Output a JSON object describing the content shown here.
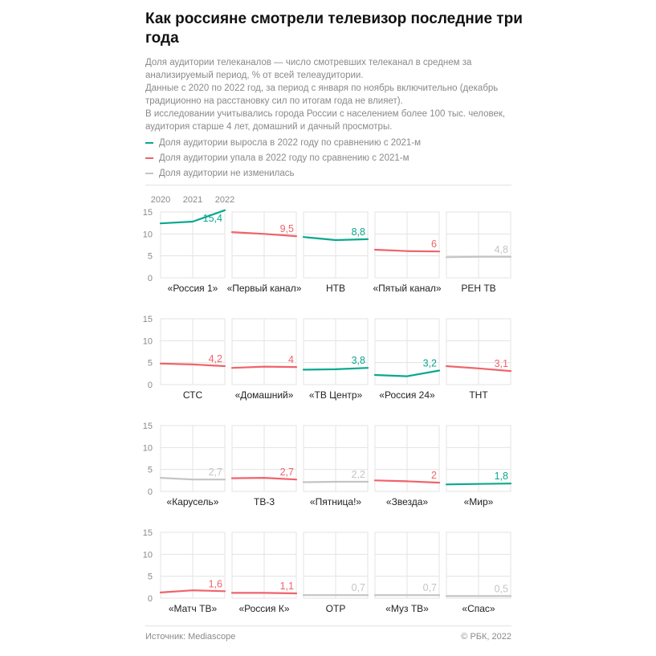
{
  "title": "Как россияне смотрели телевизор последние три года",
  "description": [
    "Доля аудитории телеканалов — число смотревших телеканал в среднем за анализируемый период, % от всей телеаудитории.",
    "Данные с 2020 по 2022 год, за период с января по ноябрь включительно (декабрь традиционно на расстановку сил по итогам года не влияет).",
    "В исследовании учитывались города России с населением более 100 тыс. человек, аудитория старше 4 лет, домашний и дачный просмотры."
  ],
  "legend": [
    {
      "label": "Доля аудитории выросла в 2022 году по сравнению с 2021-м",
      "color": "#0aa88f"
    },
    {
      "label": "Доля аудитории упала в 2022 году по сравнению с 2021-м",
      "color": "#f0636b"
    },
    {
      "label": "Доля аудитории не изменилась",
      "color": "#c4c4c4"
    }
  ],
  "colors": {
    "up": "#0aa88f",
    "down": "#f0636b",
    "same": "#c4c4c4"
  },
  "footer": {
    "source": "Источник: Mediascope",
    "copyright": "© РБК, 2022"
  },
  "chart_data": {
    "type": "line",
    "x": [
      "2020",
      "2021",
      "2022"
    ],
    "ylim": [
      0,
      15
    ],
    "yticks": [
      0,
      5,
      10,
      15
    ],
    "grid": true,
    "legend_position": "top",
    "value_label_decimal_separator": ",",
    "panels": [
      {
        "name": "«Россия 1»",
        "values": [
          12.4,
          12.8,
          15.4
        ],
        "trend": "up"
      },
      {
        "name": "«Первый канал»",
        "values": [
          10.4,
          10.0,
          9.5
        ],
        "trend": "down"
      },
      {
        "name": "НТВ",
        "values": [
          9.3,
          8.6,
          8.8
        ],
        "trend": "up"
      },
      {
        "name": "«Пятый канал»",
        "values": [
          6.4,
          6.1,
          6.0
        ],
        "trend": "down"
      },
      {
        "name": "РЕН ТВ",
        "values": [
          4.7,
          4.8,
          4.8
        ],
        "trend": "same"
      },
      {
        "name": "СТС",
        "values": [
          4.8,
          4.6,
          4.2
        ],
        "trend": "down"
      },
      {
        "name": "«Домашний»",
        "values": [
          3.8,
          4.1,
          4.0
        ],
        "trend": "down"
      },
      {
        "name": "«ТВ Центр»",
        "values": [
          3.4,
          3.5,
          3.8
        ],
        "trend": "up"
      },
      {
        "name": "«Россия 24»",
        "values": [
          2.2,
          1.9,
          3.2
        ],
        "trend": "up"
      },
      {
        "name": "ТНТ",
        "values": [
          4.2,
          3.7,
          3.1
        ],
        "trend": "down"
      },
      {
        "name": "«Карусель»",
        "values": [
          3.1,
          2.7,
          2.7
        ],
        "trend": "same"
      },
      {
        "name": "ТВ-3",
        "values": [
          3.0,
          3.1,
          2.7
        ],
        "trend": "down"
      },
      {
        "name": "«Пятница!»",
        "values": [
          2.1,
          2.2,
          2.2
        ],
        "trend": "same"
      },
      {
        "name": "«Звезда»",
        "values": [
          2.5,
          2.3,
          2.0
        ],
        "trend": "down"
      },
      {
        "name": "«Мир»",
        "values": [
          1.6,
          1.7,
          1.8
        ],
        "trend": "up"
      },
      {
        "name": "«Матч ТВ»",
        "values": [
          1.3,
          1.8,
          1.6
        ],
        "trend": "down"
      },
      {
        "name": "«Россия К»",
        "values": [
          1.2,
          1.2,
          1.1
        ],
        "trend": "down"
      },
      {
        "name": "ОТР",
        "values": [
          0.7,
          0.7,
          0.7
        ],
        "trend": "same"
      },
      {
        "name": "«Муз ТВ»",
        "values": [
          0.7,
          0.7,
          0.7
        ],
        "trend": "same"
      },
      {
        "name": "«Спас»",
        "values": [
          0.5,
          0.5,
          0.5
        ],
        "trend": "same"
      }
    ]
  }
}
